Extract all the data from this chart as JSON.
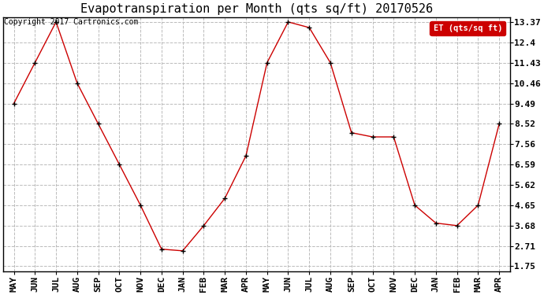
{
  "title": "Evapotranspiration per Month (qts sq/ft) 20170526",
  "copyright_text": "Copyright 2017 Cartronics.com",
  "legend_label": "ET (qts/sq ft)",
  "legend_bg": "#cc0000",
  "legend_fg": "#ffffff",
  "months": [
    "MAY",
    "JUN",
    "JUL",
    "AUG",
    "SEP",
    "OCT",
    "NOV",
    "DEC",
    "JAN",
    "FEB",
    "MAR",
    "APR",
    "MAY",
    "JUN",
    "JUL",
    "AUG",
    "SEP",
    "OCT",
    "NOV",
    "DEC",
    "JAN",
    "FEB",
    "MAR",
    "APR"
  ],
  "y_vals": [
    9.49,
    11.43,
    13.37,
    10.46,
    8.52,
    6.59,
    4.65,
    2.56,
    2.48,
    3.68,
    4.98,
    7.0,
    11.43,
    13.37,
    13.1,
    11.43,
    8.1,
    7.9,
    7.9,
    4.65,
    3.8,
    3.68,
    4.65,
    8.52
  ],
  "y_ticks": [
    1.75,
    2.71,
    3.68,
    4.65,
    5.62,
    6.59,
    7.56,
    8.52,
    9.49,
    10.46,
    11.43,
    12.4,
    13.37
  ],
  "line_color": "#cc0000",
  "marker": "+",
  "marker_color": "#000000",
  "marker_size": 5,
  "marker_lw": 1.0,
  "line_width": 1.0,
  "bg_color": "#ffffff",
  "plot_bg_color": "#ffffff",
  "grid_color": "#bbbbbb",
  "grid_style": "--",
  "title_fontsize": 11,
  "tick_fontsize": 8,
  "copyright_fontsize": 7,
  "ylim": [
    1.5,
    13.6
  ],
  "figwidth": 6.9,
  "figheight": 3.75,
  "dpi": 100
}
